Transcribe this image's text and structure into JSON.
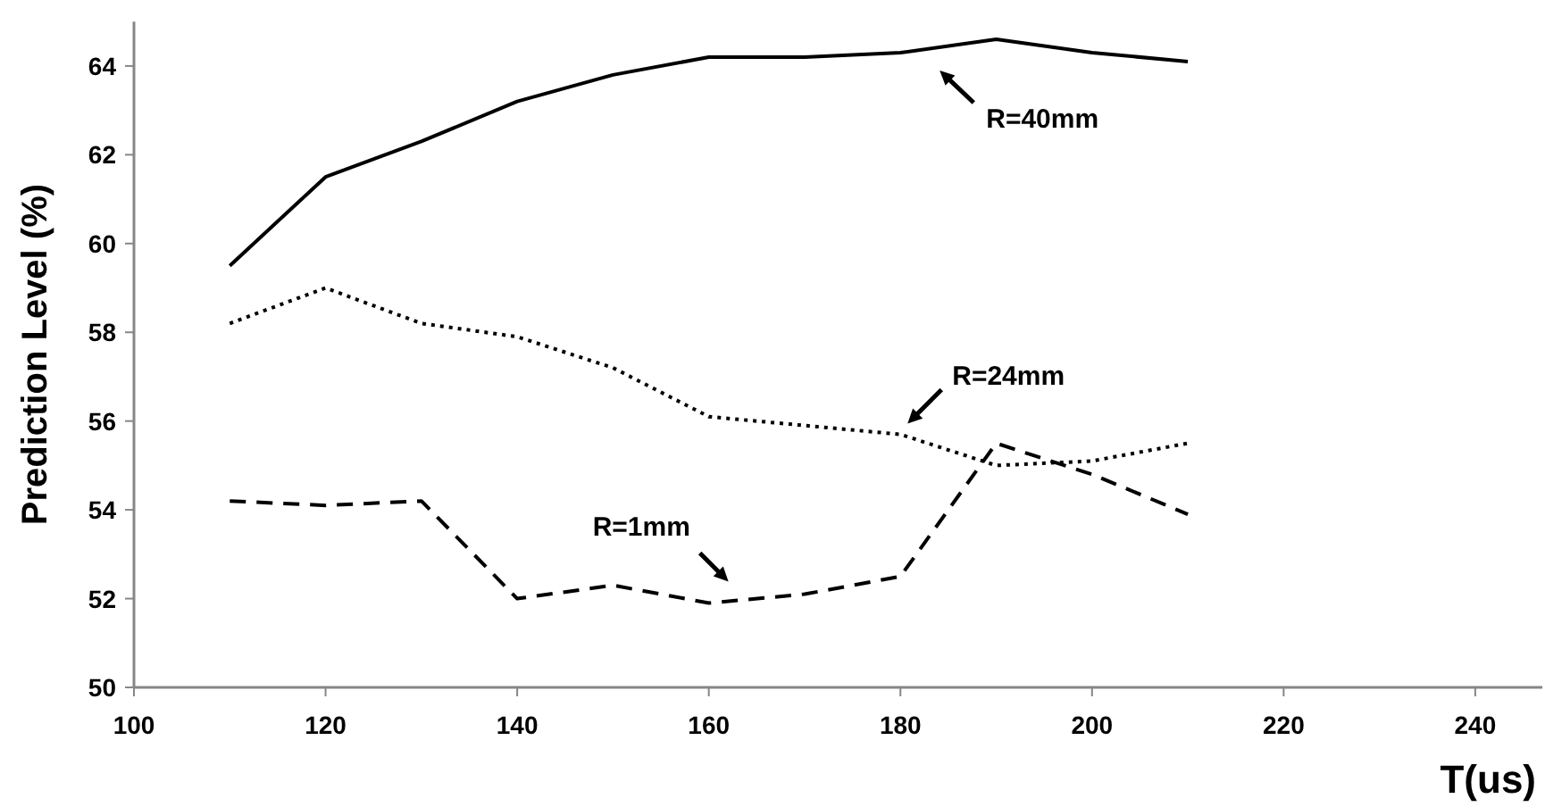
{
  "chart_data": {
    "type": "line",
    "xlabel": "T(us)",
    "ylabel": "Prediction Level (%)",
    "x": [
      110,
      120,
      130,
      140,
      150,
      160,
      170,
      180,
      190,
      200,
      210
    ],
    "series": [
      {
        "name": "R=40mm",
        "color": "#000000",
        "line_style": "solid",
        "values": [
          59.5,
          61.5,
          62.3,
          63.2,
          63.8,
          64.2,
          64.2,
          64.3,
          64.6,
          64.3,
          64.1
        ]
      },
      {
        "name": "R=24mm",
        "color": "#000000",
        "line_style": "dotted",
        "values": [
          58.2,
          59.0,
          58.2,
          57.9,
          57.2,
          56.1,
          55.9,
          55.7,
          55.0,
          55.1,
          55.5
        ]
      },
      {
        "name": "R=1mm",
        "color": "#000000",
        "line_style": "dashed",
        "values": [
          54.2,
          54.1,
          54.2,
          52.0,
          52.3,
          51.9,
          52.1,
          52.5,
          55.5,
          54.8,
          53.9
        ]
      }
    ],
    "xlim": [
      100,
      247
    ],
    "ylim": [
      50,
      65
    ],
    "xticks": [
      100,
      120,
      140,
      160,
      180,
      200,
      220,
      240
    ],
    "yticks": [
      50,
      52,
      54,
      56,
      58,
      60,
      62,
      64
    ],
    "grid": false,
    "marker": "none"
  }
}
